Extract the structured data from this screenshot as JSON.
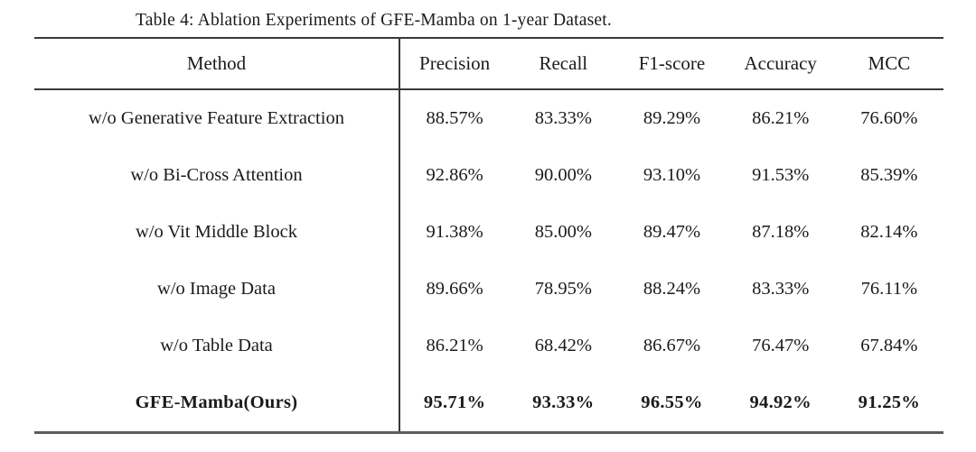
{
  "caption": "Table 4: Ablation Experiments of GFE-Mamba on 1-year Dataset.",
  "table": {
    "columns": [
      "Method",
      "Precision",
      "Recall",
      "F1-score",
      "Accuracy",
      "MCC"
    ],
    "rows": [
      {
        "method": "w/o Generative Feature Extraction",
        "precision": "88.57%",
        "recall": "83.33%",
        "f1_score": "89.29%",
        "accuracy": "86.21%",
        "mcc": "76.60%",
        "bold": false
      },
      {
        "method": "w/o Bi-Cross Attention",
        "precision": "92.86%",
        "recall": "90.00%",
        "f1_score": "93.10%",
        "accuracy": "91.53%",
        "mcc": "85.39%",
        "bold": false
      },
      {
        "method": "w/o Vit Middle Block",
        "precision": "91.38%",
        "recall": "85.00%",
        "f1_score": "89.47%",
        "accuracy": "87.18%",
        "mcc": "82.14%",
        "bold": false
      },
      {
        "method": "w/o Image Data",
        "precision": "89.66%",
        "recall": "78.95%",
        "f1_score": "88.24%",
        "accuracy": "83.33%",
        "mcc": "76.11%",
        "bold": false
      },
      {
        "method": "w/o Table Data",
        "precision": "86.21%",
        "recall": "68.42%",
        "f1_score": "86.67%",
        "accuracy": "76.47%",
        "mcc": "67.84%",
        "bold": false
      },
      {
        "method": "GFE-Mamba(Ours)",
        "precision": "95.71%",
        "recall": "93.33%",
        "f1_score": "96.55%",
        "accuracy": "94.92%",
        "mcc": "91.25%",
        "bold": true
      }
    ]
  },
  "colors": {
    "background": "#ffffff",
    "text": "#1b1b1b",
    "rule": "#3a3a3a",
    "bottom_rule": "#5c5c5c"
  }
}
